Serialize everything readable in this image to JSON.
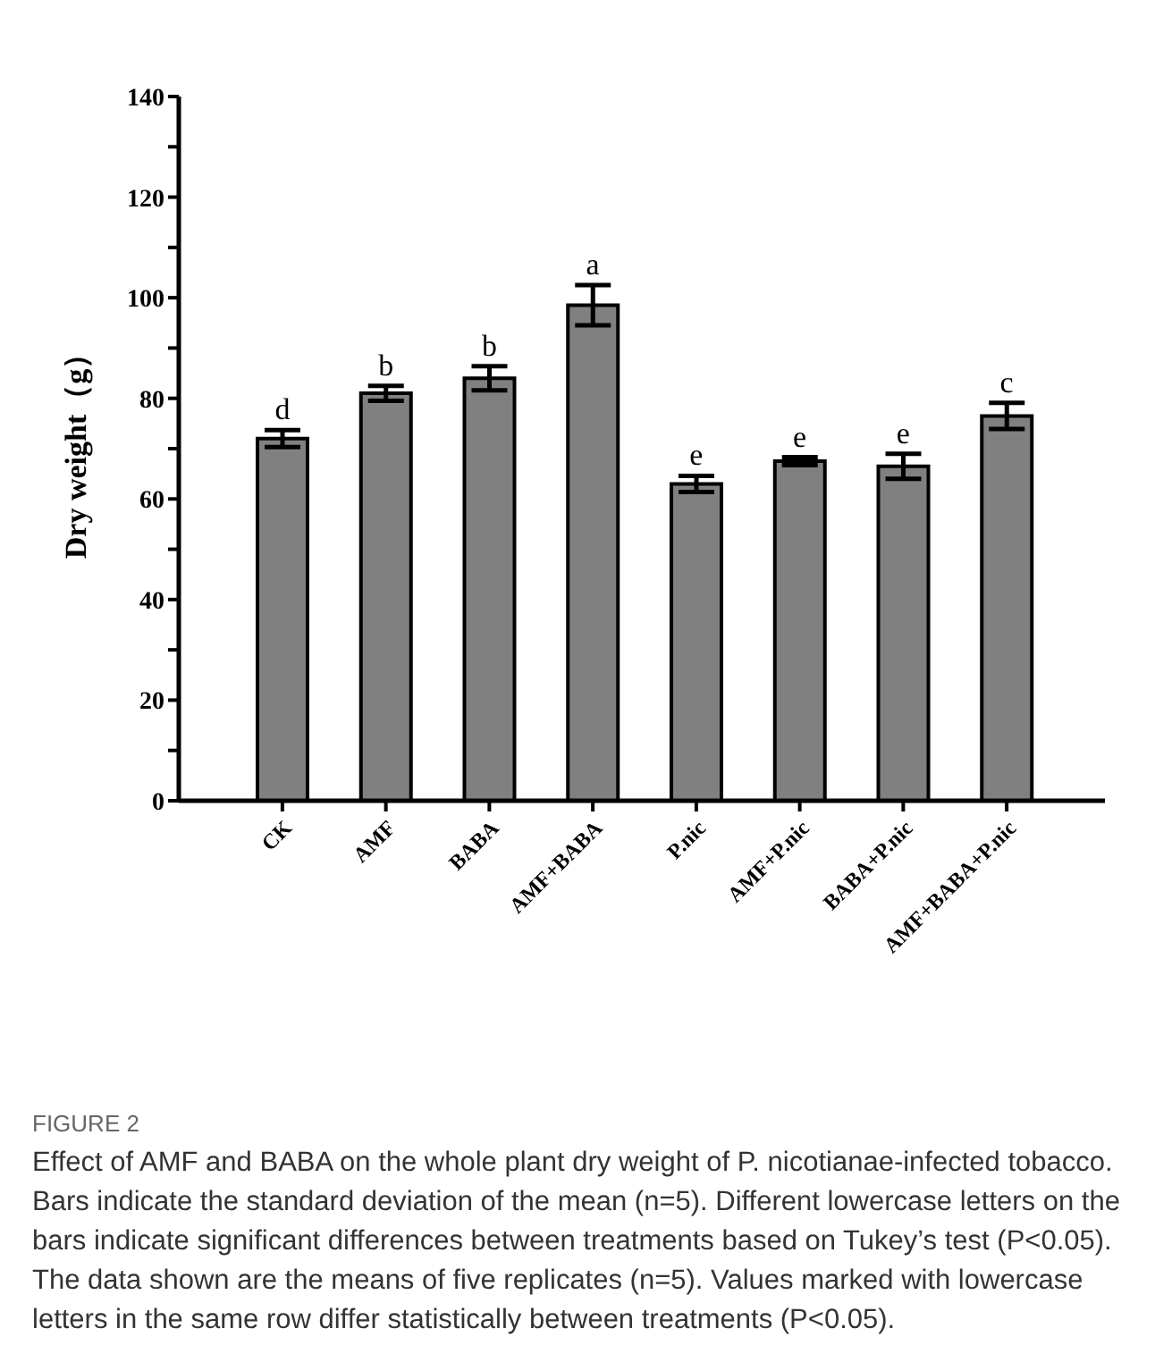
{
  "chart_data": {
    "type": "bar",
    "title": "FIGURE 2",
    "ylabel": "Dry weight（g）",
    "categories": [
      "CK",
      "AMF",
      "BABA",
      "AMF+BABA",
      "P.nic",
      "AMF+P.nic",
      "BABA+P.nic",
      "AMF+BABA+P.nic"
    ],
    "values": [
      72,
      81,
      84,
      98.5,
      63,
      67.5,
      66.5,
      76.5
    ],
    "errors": [
      1.7,
      1.5,
      2.4,
      4,
      1.6,
      0.8,
      2.5,
      2.6
    ],
    "color": "#808080",
    "ylim": [
      0,
      140
    ],
    "yticks": [
      0,
      {
        "value": 10,
        "label": null
      },
      20,
      {
        "value": 30,
        "label": null
      },
      40,
      {
        "value": 50,
        "label": null
      },
      60,
      {
        "value": 70,
        "label": null
      },
      80,
      {
        "value": 90,
        "label": null
      },
      100,
      {
        "value": 110,
        "label": null
      },
      120,
      {
        "value": 130,
        "label": null
      },
      140
    ],
    "grid": false,
    "legend": false,
    "annotations": [
      {
        "text": "d",
        "x": "CK",
        "y": 73.7
      },
      {
        "text": "b",
        "x": "AMF",
        "y": 82.5
      },
      {
        "text": "b",
        "x": "BABA",
        "y": 86.4
      },
      {
        "text": "a",
        "x": "AMF+BABA",
        "y": 102.5
      },
      {
        "text": "e",
        "x": "P.nic",
        "y": 64.6
      },
      {
        "text": "e",
        "x": "AMF+P.nic",
        "y": 68.3
      },
      {
        "text": "e",
        "x": "BABA+P.nic",
        "y": 69
      },
      {
        "text": "c",
        "x": "AMF+BABA+P.nic",
        "y": 79.1
      },
      "Effect of AMF and BABA on the whole plant dry weight of P. nicotianae-infected tobacco. Bars indicate the standard deviation of the mean (n=5). Different lowercase letters on the bars indicate significant differences between treatments based on Tukey’s test (P<0.05). The data shown are the means of five replicates (n=5). Values marked with lowercase letters in the same row differ statistically between treatments (P<0.05)."
    ]
  }
}
